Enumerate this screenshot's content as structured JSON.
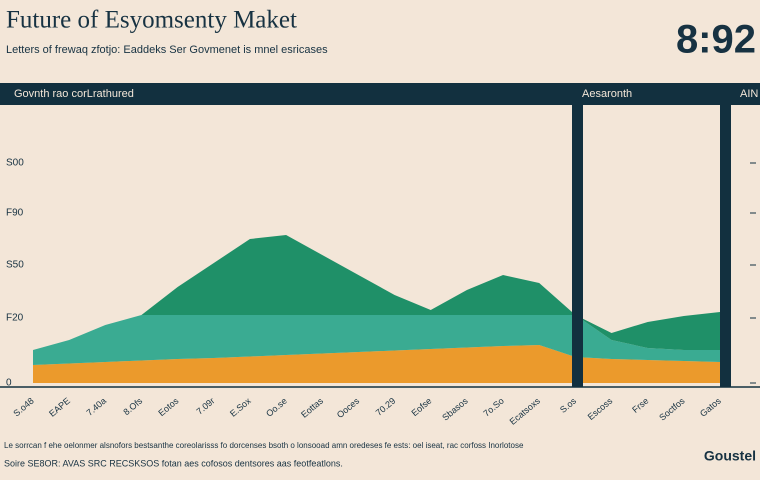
{
  "chart_data": {
    "type": "area",
    "stacked": true,
    "title": "Future of Esyomsenty Maket",
    "subtitle": "Letters of frewaq zfotjo: Eaddeks Ser Govmenet is mnel esricases",
    "clock": "8:92",
    "band_labels": [
      "Govnth rao corLrathured",
      "Aesaronth",
      "AIN"
    ],
    "categories": [
      "S.o48",
      "EAPE",
      "7.40a",
      "8.Ofs",
      "Eotos",
      "7.09r",
      "E.Sox",
      "Oo.se",
      "Eottas",
      "Ooces",
      "70.29",
      "Eofse",
      "Sbasos",
      "7o.So",
      "Ecatsoxs",
      "S.os",
      "Escoss",
      "Frse",
      "Soctfos",
      "Gatos"
    ],
    "series": [
      {
        "name": "Orange",
        "color": "#eb9a2c",
        "values": [
          36,
          39,
          42,
          45,
          48,
          50,
          53,
          56,
          59,
          62,
          65,
          68,
          71,
          74,
          76,
          52,
          48,
          46,
          44,
          42
        ]
      },
      {
        "name": "Teal",
        "color": "#3aab92",
        "values": [
          30,
          47,
          74,
          91,
          88,
          86,
          83,
          80,
          77,
          74,
          71,
          68,
          65,
          62,
          60,
          84,
          38,
          24,
          22,
          24
        ]
      },
      {
        "name": "Green",
        "color": "#1f9068",
        "values": [
          0,
          0,
          0,
          0,
          56,
          104,
          152,
          160,
          120,
          80,
          40,
          10,
          50,
          80,
          64,
          0,
          14,
          52,
          68,
          76
        ]
      }
    ],
    "ylim": [
      0,
      546
    ],
    "yticks": [
      0,
      {
        "value": 130,
        "label": "F20"
      },
      {
        "value": 236,
        "label": "S50"
      },
      {
        "value": 340,
        "label": "F90"
      },
      {
        "value": 440,
        "label": "S00"
      }
    ],
    "notes": [
      "Le sorrcan f ehe oelonmer alsnofors bestsanthe coreolarisss fo dorcenses bsoth o lonsooad amn oredeses fe ests: oel iseat, rac corfoss Inorlotose",
      "Soire SE8OR: AVAS SRC RECSKSOS fotan aes cofosos dentsores aas feotfeatlons."
    ],
    "logo": "Goustel"
  }
}
